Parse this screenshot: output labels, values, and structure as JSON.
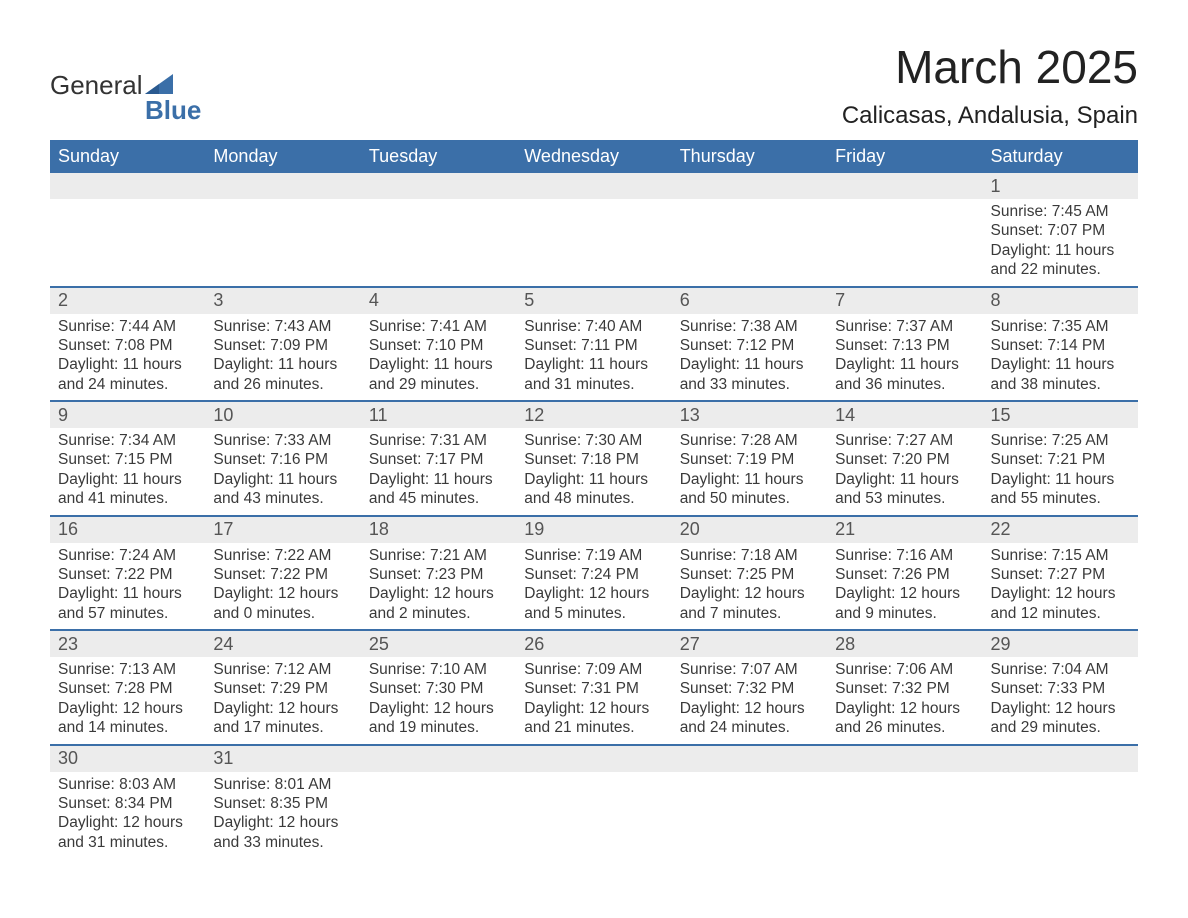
{
  "logo": {
    "text1": "General",
    "text2": "Blue"
  },
  "title": "March 2025",
  "location": "Calicasas, Andalusia, Spain",
  "colors": {
    "header_bg": "#3b6fa8",
    "header_text": "#ffffff",
    "daynum_bg": "#ececec",
    "daynum_border": "#3b6fa8",
    "body_text": "#3a3a3a",
    "logo_blue": "#3b6fa8"
  },
  "fonts": {
    "title_size": 46,
    "location_size": 24,
    "dayheader_size": 18,
    "daynum_size": 18,
    "detail_size": 15.5
  },
  "day_headers": [
    "Sunday",
    "Monday",
    "Tuesday",
    "Wednesday",
    "Thursday",
    "Friday",
    "Saturday"
  ],
  "weeks": [
    {
      "days": [
        null,
        null,
        null,
        null,
        null,
        null,
        {
          "n": "1",
          "sunrise": "7:45 AM",
          "sunset": "7:07 PM",
          "daylight": "11 hours and 22 minutes."
        }
      ]
    },
    {
      "days": [
        {
          "n": "2",
          "sunrise": "7:44 AM",
          "sunset": "7:08 PM",
          "daylight": "11 hours and 24 minutes."
        },
        {
          "n": "3",
          "sunrise": "7:43 AM",
          "sunset": "7:09 PM",
          "daylight": "11 hours and 26 minutes."
        },
        {
          "n": "4",
          "sunrise": "7:41 AM",
          "sunset": "7:10 PM",
          "daylight": "11 hours and 29 minutes."
        },
        {
          "n": "5",
          "sunrise": "7:40 AM",
          "sunset": "7:11 PM",
          "daylight": "11 hours and 31 minutes."
        },
        {
          "n": "6",
          "sunrise": "7:38 AM",
          "sunset": "7:12 PM",
          "daylight": "11 hours and 33 minutes."
        },
        {
          "n": "7",
          "sunrise": "7:37 AM",
          "sunset": "7:13 PM",
          "daylight": "11 hours and 36 minutes."
        },
        {
          "n": "8",
          "sunrise": "7:35 AM",
          "sunset": "7:14 PM",
          "daylight": "11 hours and 38 minutes."
        }
      ]
    },
    {
      "days": [
        {
          "n": "9",
          "sunrise": "7:34 AM",
          "sunset": "7:15 PM",
          "daylight": "11 hours and 41 minutes."
        },
        {
          "n": "10",
          "sunrise": "7:33 AM",
          "sunset": "7:16 PM",
          "daylight": "11 hours and 43 minutes."
        },
        {
          "n": "11",
          "sunrise": "7:31 AM",
          "sunset": "7:17 PM",
          "daylight": "11 hours and 45 minutes."
        },
        {
          "n": "12",
          "sunrise": "7:30 AM",
          "sunset": "7:18 PM",
          "daylight": "11 hours and 48 minutes."
        },
        {
          "n": "13",
          "sunrise": "7:28 AM",
          "sunset": "7:19 PM",
          "daylight": "11 hours and 50 minutes."
        },
        {
          "n": "14",
          "sunrise": "7:27 AM",
          "sunset": "7:20 PM",
          "daylight": "11 hours and 53 minutes."
        },
        {
          "n": "15",
          "sunrise": "7:25 AM",
          "sunset": "7:21 PM",
          "daylight": "11 hours and 55 minutes."
        }
      ]
    },
    {
      "days": [
        {
          "n": "16",
          "sunrise": "7:24 AM",
          "sunset": "7:22 PM",
          "daylight": "11 hours and 57 minutes."
        },
        {
          "n": "17",
          "sunrise": "7:22 AM",
          "sunset": "7:22 PM",
          "daylight": "12 hours and 0 minutes."
        },
        {
          "n": "18",
          "sunrise": "7:21 AM",
          "sunset": "7:23 PM",
          "daylight": "12 hours and 2 minutes."
        },
        {
          "n": "19",
          "sunrise": "7:19 AM",
          "sunset": "7:24 PM",
          "daylight": "12 hours and 5 minutes."
        },
        {
          "n": "20",
          "sunrise": "7:18 AM",
          "sunset": "7:25 PM",
          "daylight": "12 hours and 7 minutes."
        },
        {
          "n": "21",
          "sunrise": "7:16 AM",
          "sunset": "7:26 PM",
          "daylight": "12 hours and 9 minutes."
        },
        {
          "n": "22",
          "sunrise": "7:15 AM",
          "sunset": "7:27 PM",
          "daylight": "12 hours and 12 minutes."
        }
      ]
    },
    {
      "days": [
        {
          "n": "23",
          "sunrise": "7:13 AM",
          "sunset": "7:28 PM",
          "daylight": "12 hours and 14 minutes."
        },
        {
          "n": "24",
          "sunrise": "7:12 AM",
          "sunset": "7:29 PM",
          "daylight": "12 hours and 17 minutes."
        },
        {
          "n": "25",
          "sunrise": "7:10 AM",
          "sunset": "7:30 PM",
          "daylight": "12 hours and 19 minutes."
        },
        {
          "n": "26",
          "sunrise": "7:09 AM",
          "sunset": "7:31 PM",
          "daylight": "12 hours and 21 minutes."
        },
        {
          "n": "27",
          "sunrise": "7:07 AM",
          "sunset": "7:32 PM",
          "daylight": "12 hours and 24 minutes."
        },
        {
          "n": "28",
          "sunrise": "7:06 AM",
          "sunset": "7:32 PM",
          "daylight": "12 hours and 26 minutes."
        },
        {
          "n": "29",
          "sunrise": "7:04 AM",
          "sunset": "7:33 PM",
          "daylight": "12 hours and 29 minutes."
        }
      ]
    },
    {
      "days": [
        {
          "n": "30",
          "sunrise": "8:03 AM",
          "sunset": "8:34 PM",
          "daylight": "12 hours and 31 minutes."
        },
        {
          "n": "31",
          "sunrise": "8:01 AM",
          "sunset": "8:35 PM",
          "daylight": "12 hours and 33 minutes."
        },
        null,
        null,
        null,
        null,
        null
      ]
    }
  ],
  "labels": {
    "sunrise": "Sunrise:",
    "sunset": "Sunset:",
    "daylight": "Daylight:"
  }
}
